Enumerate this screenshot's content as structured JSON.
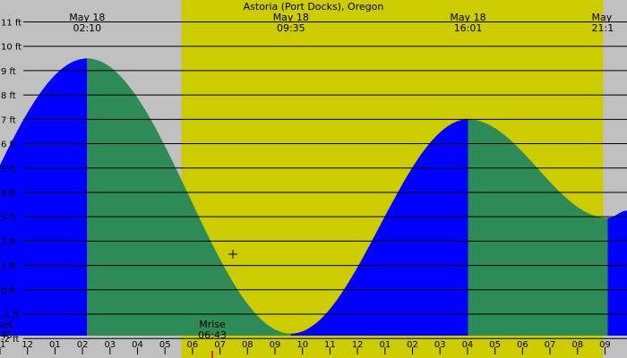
{
  "chart_data": {
    "type": "area",
    "title": "Astoria (Port Docks), Oregon",
    "units": "ft",
    "x_range_hours": [
      -1,
      21.8
    ],
    "ylim": [
      -2.8,
      11.9
    ],
    "y_ticks": [
      11,
      10,
      9,
      8,
      7,
      6,
      5,
      4,
      3,
      2,
      1,
      0,
      -1,
      -2
    ],
    "y_tick_labels": [
      "11 ft",
      "10 ft",
      "9 ft",
      "8 ft",
      "7 ft",
      "6 ft",
      "5 ft",
      "4 ft",
      "3 ft",
      "2 ft",
      "1 ft",
      "0 ft",
      "-1 ft",
      "-2 ft"
    ],
    "x_tick_labels": [
      "11",
      "12",
      "01",
      "02",
      "03",
      "04",
      "05",
      "06",
      "07",
      "08",
      "09",
      "10",
      "11",
      "12",
      "01",
      "02",
      "03",
      "04",
      "05",
      "06",
      "07",
      "08",
      "09"
    ],
    "x_tick_hours": [
      -1,
      0,
      1,
      2,
      3,
      4,
      5,
      6,
      7,
      8,
      9,
      10,
      11,
      12,
      13,
      14,
      15,
      16,
      17,
      18,
      19,
      20,
      21
    ],
    "daylight": {
      "start_hour": 5.6,
      "end_hour": 20.93
    },
    "extremes": [
      {
        "type": "high",
        "date": "May 18",
        "time": "02:10",
        "hour": 2.17,
        "height": 9.5
      },
      {
        "type": "low",
        "date": "May 18",
        "time": "09:35",
        "hour": 9.58,
        "height": -1.8
      },
      {
        "type": "high",
        "date": "May 18",
        "time": "16:01",
        "hour": 16.02,
        "height": 7.0
      },
      {
        "type": "low",
        "date": "May",
        "time": "21:1",
        "hour": 21.1,
        "height": 2.95
      }
    ],
    "start_height": 5.1,
    "events": [
      {
        "label": "Mrise",
        "time": "06:43",
        "hour": 6.72
      },
      {
        "label": "set",
        "time": ":45",
        "hour": -1.0
      }
    ],
    "colors": {
      "background": "#c0c0c0",
      "daylight": "#cccc00",
      "rising": "#0000ff",
      "falling": "#2e8b57"
    }
  }
}
